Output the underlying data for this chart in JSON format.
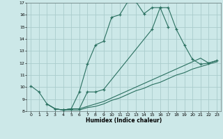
{
  "title": "",
  "xlabel": "Humidex (Indice chaleur)",
  "bg_color": "#cce8e8",
  "grid_color": "#aacccc",
  "line_color": "#2a7060",
  "xlim": [
    -0.5,
    23.5
  ],
  "ylim": [
    8,
    17
  ],
  "xticks": [
    0,
    1,
    2,
    3,
    4,
    5,
    6,
    7,
    8,
    9,
    10,
    11,
    12,
    13,
    14,
    15,
    16,
    17,
    18,
    19,
    20,
    21,
    22,
    23
  ],
  "yticks": [
    8,
    9,
    10,
    11,
    12,
    13,
    14,
    15,
    16,
    17
  ],
  "series1_x": [
    0,
    1,
    2,
    3,
    4,
    5,
    6,
    7,
    8,
    9,
    10,
    11,
    12,
    13,
    14,
    15,
    16,
    17
  ],
  "series1_y": [
    10.1,
    9.6,
    8.6,
    8.2,
    8.1,
    8.2,
    9.6,
    11.9,
    13.5,
    13.8,
    15.8,
    16.0,
    17.1,
    17.1,
    16.1,
    16.6,
    16.6,
    15.0
  ],
  "series2_x": [
    4,
    5,
    6,
    7,
    8,
    9,
    15,
    16,
    17,
    18,
    19,
    20,
    21,
    22,
    23
  ],
  "series2_y": [
    8.1,
    8.2,
    8.2,
    9.6,
    9.6,
    9.8,
    14.8,
    16.6,
    16.6,
    14.8,
    13.5,
    12.3,
    11.9,
    12.0,
    12.2
  ],
  "series3_x": [
    2,
    3,
    4,
    5,
    6,
    7,
    8,
    9,
    10,
    11,
    12,
    13,
    14,
    15,
    16,
    17,
    18,
    19,
    20,
    21,
    22,
    23
  ],
  "series3_y": [
    8.6,
    8.2,
    8.1,
    8.2,
    8.2,
    8.4,
    8.6,
    8.8,
    9.1,
    9.4,
    9.7,
    10.0,
    10.3,
    10.6,
    10.9,
    11.2,
    11.5,
    11.8,
    12.1,
    12.4,
    12.0,
    12.2
  ],
  "series4_x": [
    2,
    3,
    4,
    5,
    6,
    7,
    8,
    9,
    10,
    11,
    12,
    13,
    14,
    15,
    16,
    17,
    18,
    19,
    20,
    21,
    22,
    23
  ],
  "series4_y": [
    8.6,
    8.2,
    8.1,
    8.1,
    8.1,
    8.3,
    8.4,
    8.6,
    8.9,
    9.1,
    9.4,
    9.7,
    9.9,
    10.2,
    10.4,
    10.7,
    11.0,
    11.2,
    11.5,
    11.7,
    11.9,
    12.1
  ]
}
